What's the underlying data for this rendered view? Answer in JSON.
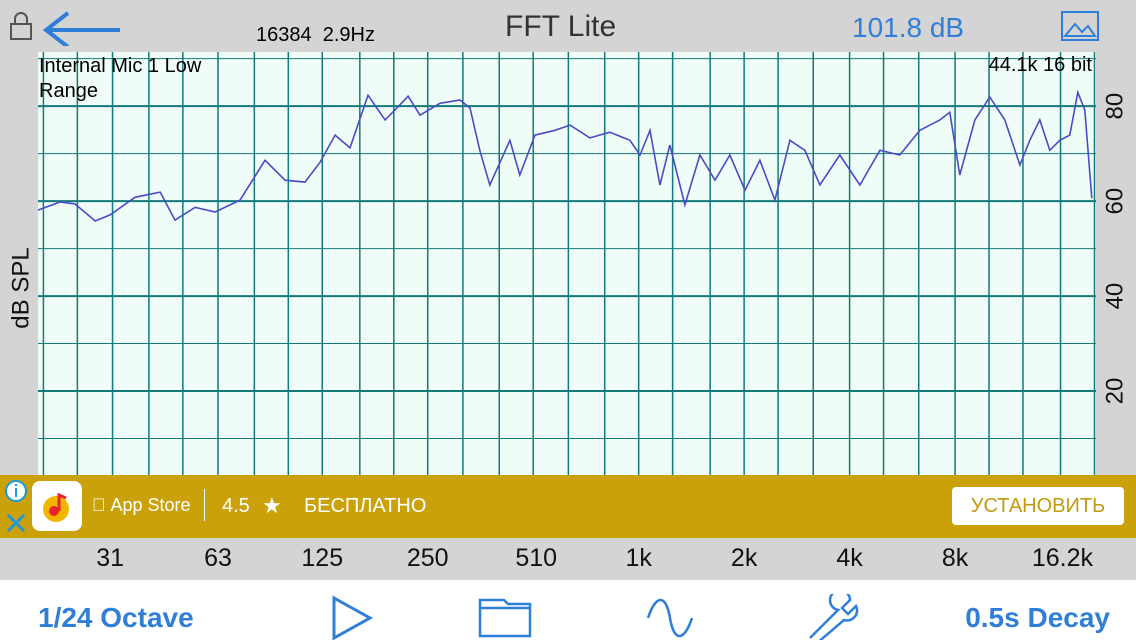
{
  "header": {
    "sample_info": "16384  2.9Hz",
    "title": "FFT Lite",
    "level": "101.8 dB"
  },
  "chart_data": {
    "type": "line",
    "ylabel": "dB SPL",
    "annotations": [
      "Internal Mic 1 Low Range",
      "44.1k 16 bit"
    ],
    "x_log": true,
    "grid": true,
    "color": "#4b4bc6",
    "xlim": [
      19.3,
      20200
    ],
    "ylim": [
      0,
      91.4
    ],
    "xticks": [
      31,
      63,
      125,
      250,
      510,
      {
        "value": 1000,
        "label": "1k"
      },
      {
        "value": 2000,
        "label": "2k"
      },
      {
        "value": 4000,
        "label": "4k"
      },
      {
        "value": 8000,
        "label": "8k"
      },
      {
        "value": 16200,
        "label": "16.2k"
      }
    ],
    "yticks": [
      20,
      40,
      60,
      80
    ],
    "minor_xticks": [
      20,
      25,
      31.5,
      40,
      50,
      63,
      80,
      100,
      125,
      160,
      200,
      250,
      315,
      400,
      500,
      630,
      800,
      1000,
      1250,
      1600,
      2000,
      2500,
      3150,
      4000,
      5000,
      6300,
      8000,
      10000,
      12500,
      16000,
      20000
    ],
    "minor_yticks": [
      10,
      30,
      50,
      70,
      90
    ],
    "x": [
      19.3,
      22.3,
      24.6,
      28.1,
      31,
      36.5,
      43.1,
      47.5,
      54.2,
      61.8,
      72.8,
      85.8,
      97.9,
      111.6,
      123.2,
      136,
      150,
      168.8,
      188.9,
      201.6,
      219.7,
      237.6,
      271,
      309,
      330,
      352,
      376,
      429,
      458,
      506,
      577,
      637,
      726,
      828,
      944,
      1009,
      1077,
      1150,
      1228,
      1355,
      1495,
      1651,
      1822,
      2011,
      2219,
      2448,
      2701,
      2982,
      3290,
      3751,
      4281,
      4882,
      5565,
      6349,
      7239,
      7729,
      8255,
      9111,
      10053,
      11092,
      12248,
      13073,
      13959,
      14911,
      15925,
      17010,
      17921,
      18771,
      19651
    ],
    "values": [
      58.1,
      59.8,
      59.4,
      55.8,
      57.1,
      60.8,
      61.9,
      56.0,
      58.7,
      57.7,
      60.2,
      68.6,
      64.4,
      64.0,
      68.2,
      73.9,
      71.2,
      82.3,
      77.1,
      79.2,
      82.1,
      78.1,
      80.6,
      81.3,
      79.6,
      70.7,
      63.4,
      72.8,
      65.5,
      73.9,
      74.9,
      76.0,
      73.3,
      74.5,
      72.8,
      69.7,
      74.9,
      63.4,
      71.8,
      59.2,
      69.7,
      64.4,
      69.7,
      62.3,
      68.6,
      60.2,
      72.8,
      70.7,
      63.4,
      69.7,
      63.4,
      70.7,
      69.7,
      74.9,
      77.1,
      78.7,
      65.5,
      77.1,
      81.9,
      77.1,
      67.6,
      72.8,
      77.1,
      70.7,
      72.8,
      73.9,
      82.9,
      79.2,
      60.6
    ]
  },
  "ad": {
    "store": "App Store",
    "rating": "4.5",
    "price": "БЕСПЛАТНО",
    "button": "УСТАНОВИТЬ"
  },
  "toolbar": {
    "resolution": "1/24 Octave",
    "decay": "0.5s Decay"
  }
}
